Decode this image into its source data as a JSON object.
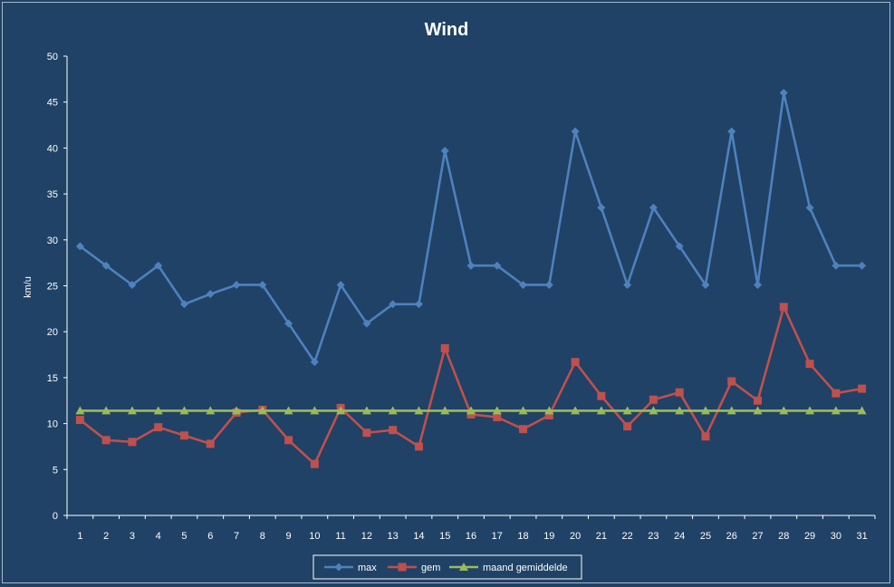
{
  "chart_data": {
    "type": "line",
    "title": "Wind",
    "xlabel": "",
    "ylabel": "km/u",
    "categories": [
      "1",
      "2",
      "3",
      "4",
      "5",
      "6",
      "7",
      "8",
      "9",
      "10",
      "11",
      "12",
      "13",
      "14",
      "15",
      "16",
      "17",
      "18",
      "19",
      "20",
      "21",
      "22",
      "23",
      "24",
      "25",
      "26",
      "27",
      "28",
      "29",
      "30",
      "31"
    ],
    "ylim": [
      0,
      50
    ],
    "yticks": [
      0,
      5,
      10,
      15,
      20,
      25,
      30,
      35,
      40,
      45,
      50
    ],
    "grid": false,
    "legend_position": "bottom",
    "series": [
      {
        "name": "max",
        "color": "#4f81bd",
        "marker": "diamond",
        "values": [
          29.3,
          27.2,
          25.1,
          27.2,
          23.0,
          24.1,
          25.1,
          25.1,
          20.9,
          16.7,
          25.1,
          20.9,
          23.0,
          23.0,
          39.7,
          27.2,
          27.2,
          25.1,
          25.1,
          41.8,
          33.5,
          25.1,
          33.5,
          29.3,
          25.1,
          41.8,
          25.1,
          46.0,
          33.5,
          27.2,
          27.2
        ]
      },
      {
        "name": "gem",
        "color": "#c0504d",
        "marker": "square",
        "values": [
          10.4,
          8.2,
          8.0,
          9.6,
          8.7,
          7.8,
          11.2,
          11.5,
          8.2,
          5.6,
          11.7,
          9.0,
          9.3,
          7.5,
          18.2,
          11.0,
          10.7,
          9.4,
          10.9,
          16.7,
          13.0,
          9.7,
          12.6,
          13.4,
          8.6,
          14.6,
          12.5,
          22.7,
          16.5,
          13.3,
          13.8
        ]
      },
      {
        "name": "maand gemiddelde",
        "color": "#9bbb59",
        "marker": "triangle",
        "values": [
          11.4,
          11.4,
          11.4,
          11.4,
          11.4,
          11.4,
          11.4,
          11.4,
          11.4,
          11.4,
          11.4,
          11.4,
          11.4,
          11.4,
          11.4,
          11.4,
          11.4,
          11.4,
          11.4,
          11.4,
          11.4,
          11.4,
          11.4,
          11.4,
          11.4,
          11.4,
          11.4,
          11.4,
          11.4,
          11.4,
          11.4
        ]
      }
    ]
  },
  "colors": {
    "background": "#1f4266",
    "axis": "#ffffff",
    "text": "#ffffff",
    "legend_border": "#ffffff",
    "legend_background": "#1f4266"
  }
}
